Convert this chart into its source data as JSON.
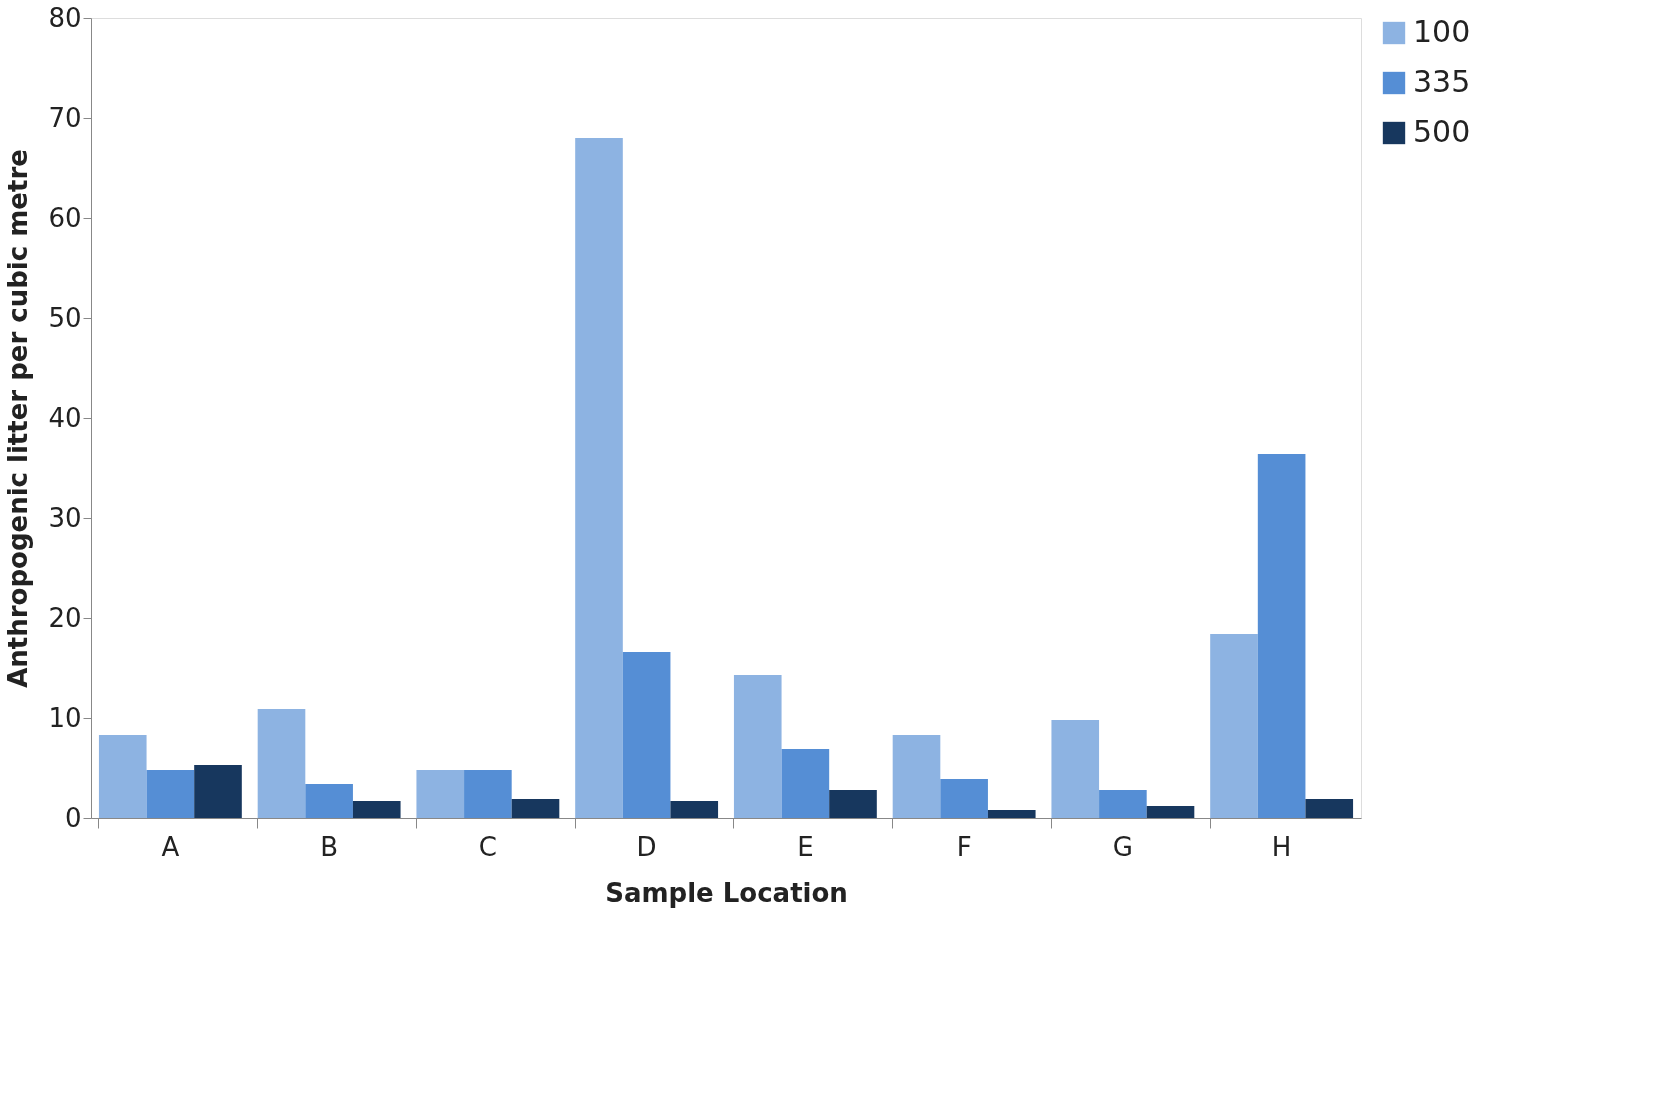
{
  "chart_data": {
    "type": "bar",
    "xlabel": "Sample Location",
    "ylabel": "Anthropogenic litter per cubic metre",
    "categories": [
      "A",
      "B",
      "C",
      "D",
      "E",
      "F",
      "G",
      "H"
    ],
    "series": [
      {
        "name": "100",
        "color": "#8db3e2",
        "values": [
          8.3,
          10.9,
          4.8,
          68,
          14.3,
          8.3,
          9.8,
          18.4
        ]
      },
      {
        "name": "335",
        "color": "#558ed5",
        "values": [
          4.8,
          3.4,
          4.8,
          16.6,
          6.9,
          3.9,
          2.8,
          36.4
        ]
      },
      {
        "name": "500",
        "color": "#17375e",
        "values": [
          5.3,
          1.7,
          1.9,
          1.7,
          2.8,
          0.8,
          1.2,
          1.9
        ]
      }
    ],
    "ylim": [
      0,
      80
    ],
    "yticks": [
      0,
      10,
      20,
      30,
      40,
      50,
      60,
      70,
      80
    ],
    "grid": false,
    "legend": "right"
  }
}
